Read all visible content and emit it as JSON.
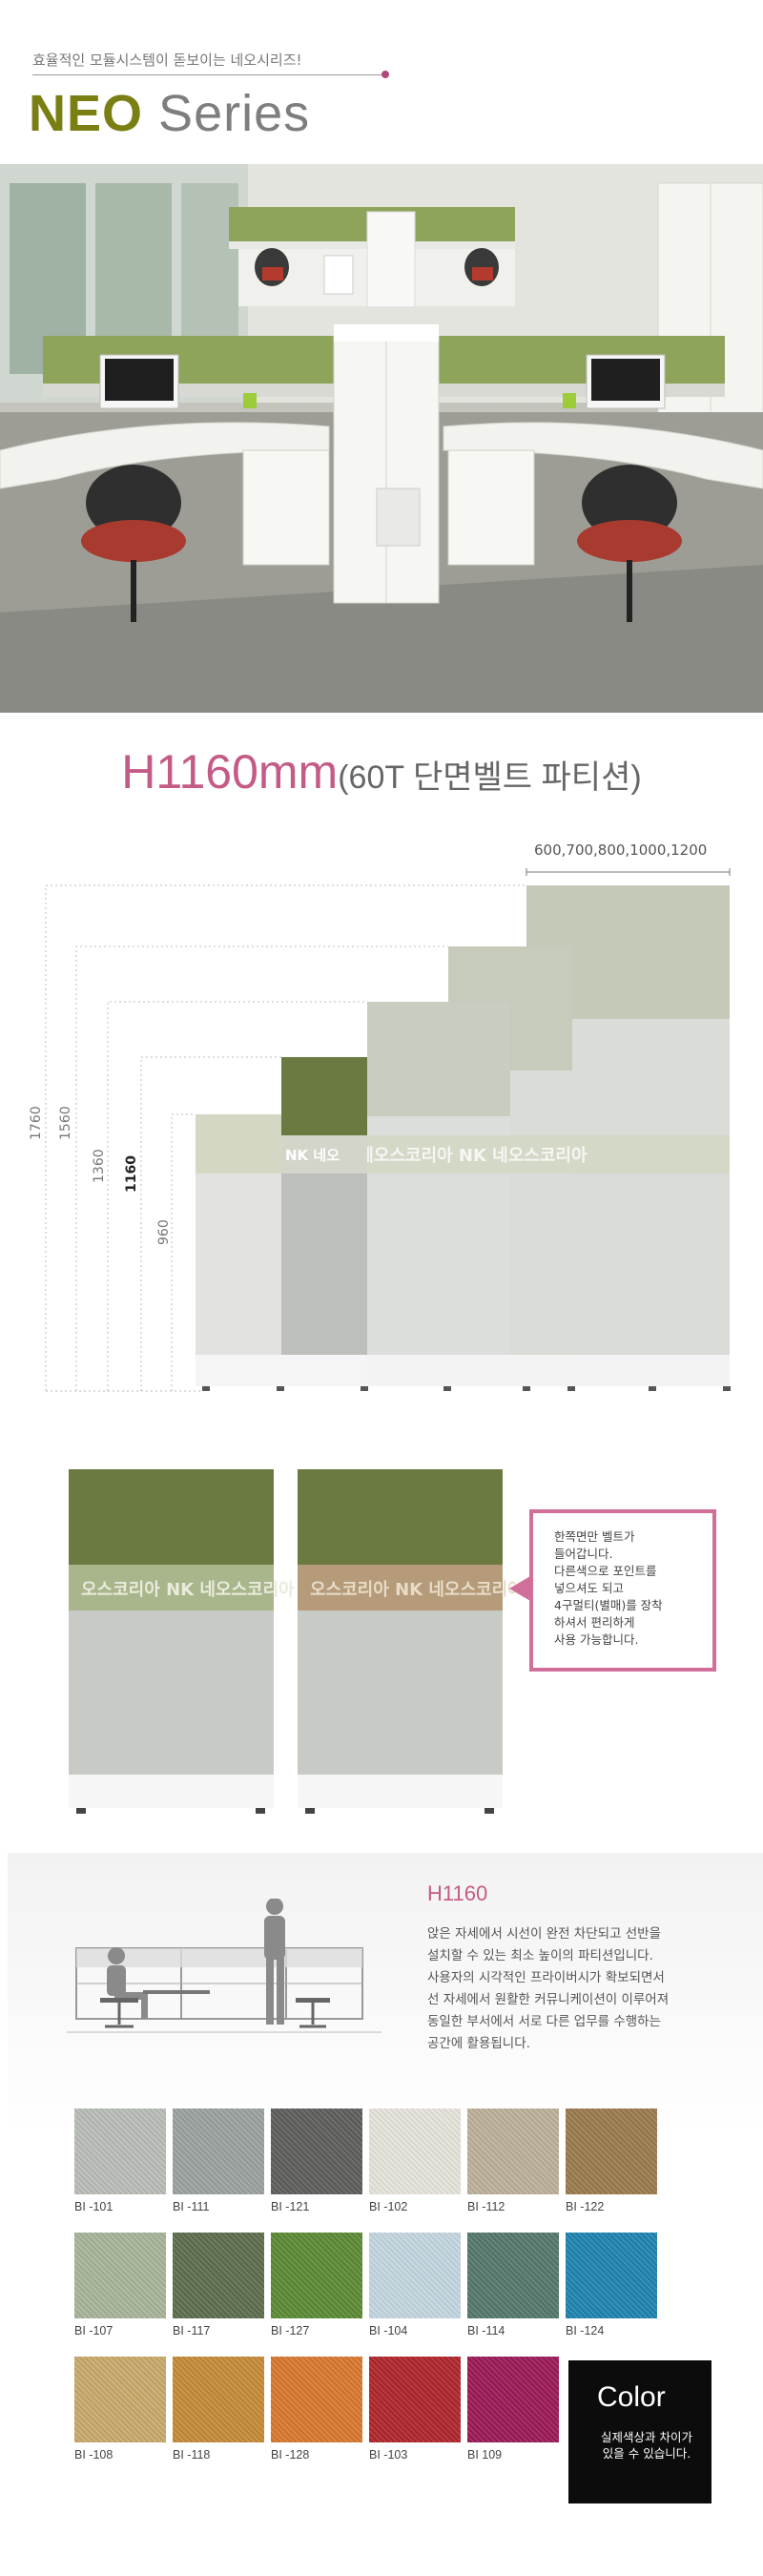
{
  "header": {
    "tagline": "효율적인 모듈시스템이 돋보이는 네오시리즈!",
    "title_bold": "NEO",
    "title_light": "Series"
  },
  "section_heading": {
    "main": "H1160mm",
    "sub": "(60T 단면벨트 파티션)"
  },
  "height_diagram": {
    "width_options": "600,700,800,1000,1200",
    "heights": [
      "1760",
      "1560",
      "1360",
      "1160",
      "960"
    ],
    "highlighted_height": "1160",
    "belt_text": "NK 네오스코리아"
  },
  "belt_comparison": {
    "belt_text": "NK 네오스코리아",
    "callout_lines": [
      "한쪽면만 벨트가",
      "들어갑니다.",
      "다른색으로 포인트를",
      "넣으셔도 되고",
      "4구멀티(별매)를 장착",
      "하셔서 편리하게",
      "사용 가능합니다."
    ],
    "colors": {
      "panel_green": "#6b7a40",
      "fabric_grey": "#c8cac6",
      "belt_beige": "#b59b7a",
      "accent_pink": "#d0709a"
    }
  },
  "description": {
    "title": "H1160",
    "lines": [
      "앉은 자세에서 시선이 완전 차단되고 선반을",
      "설치할 수 있는 최소 높이의 파티션입니다.",
      "사용자의 시각적인 프라이버시가 확보되면서",
      "선 자세에서 원활한 커뮤니케이션이 이루어져",
      "동일한 부서에서 서로 다른 업무를 수행하는",
      "공간에 활용됩니다."
    ]
  },
  "swatches": [
    {
      "code": "BI -101",
      "color": "#b9bdb7"
    },
    {
      "code": "BI -111",
      "color": "#9aa29e"
    },
    {
      "code": "BI -121",
      "color": "#5d5f5c"
    },
    {
      "code": "BI -102",
      "color": "#e6e3da"
    },
    {
      "code": "BI -112",
      "color": "#bcb09a"
    },
    {
      "code": "BI -122",
      "color": "#9a7b4c"
    },
    {
      "code": "BI -107",
      "color": "#a7b598"
    },
    {
      "code": "BI -117",
      "color": "#5d6d4d"
    },
    {
      "code": "BI -127",
      "color": "#5b8a35"
    },
    {
      "code": "BI -104",
      "color": "#c3d6e0"
    },
    {
      "code": "BI -114",
      "color": "#55786c"
    },
    {
      "code": "BI -124",
      "color": "#1e84b0"
    },
    {
      "code": "BI -108",
      "color": "#c8a96a"
    },
    {
      "code": "BI -118",
      "color": "#c58a37"
    },
    {
      "code": "BI -128",
      "color": "#d8782e"
    },
    {
      "code": "BI -103",
      "color": "#b0252c"
    },
    {
      "code": "BI 109",
      "color": "#9b1a57"
    }
  ],
  "color_box": {
    "title": "Color",
    "note": "실제색상과 차이가 있을 수 있습니다."
  }
}
